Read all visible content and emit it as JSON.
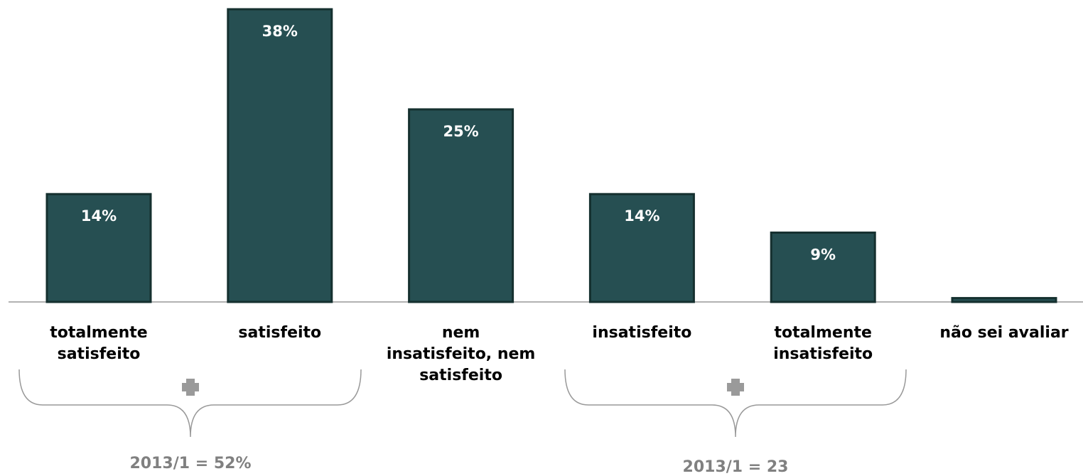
{
  "chart_data": {
    "type": "bar",
    "categories": [
      "totalmente\nsatisfeito",
      "satisfeito",
      "nem\ninsatisfeito, nem\nsatisfeito",
      "insatisfeito",
      "totalmente\ninsatisfeito",
      "não sei avaliar"
    ],
    "values": [
      14,
      38,
      25,
      14,
      9,
      0.5
    ],
    "value_labels": [
      "14%",
      "38%",
      "25%",
      "14%",
      "9%",
      null
    ],
    "color": "#264f52",
    "ylim": [
      0,
      38
    ],
    "annotations": [
      "2013/1 = 52%",
      "2013/1 = 23"
    ]
  }
}
